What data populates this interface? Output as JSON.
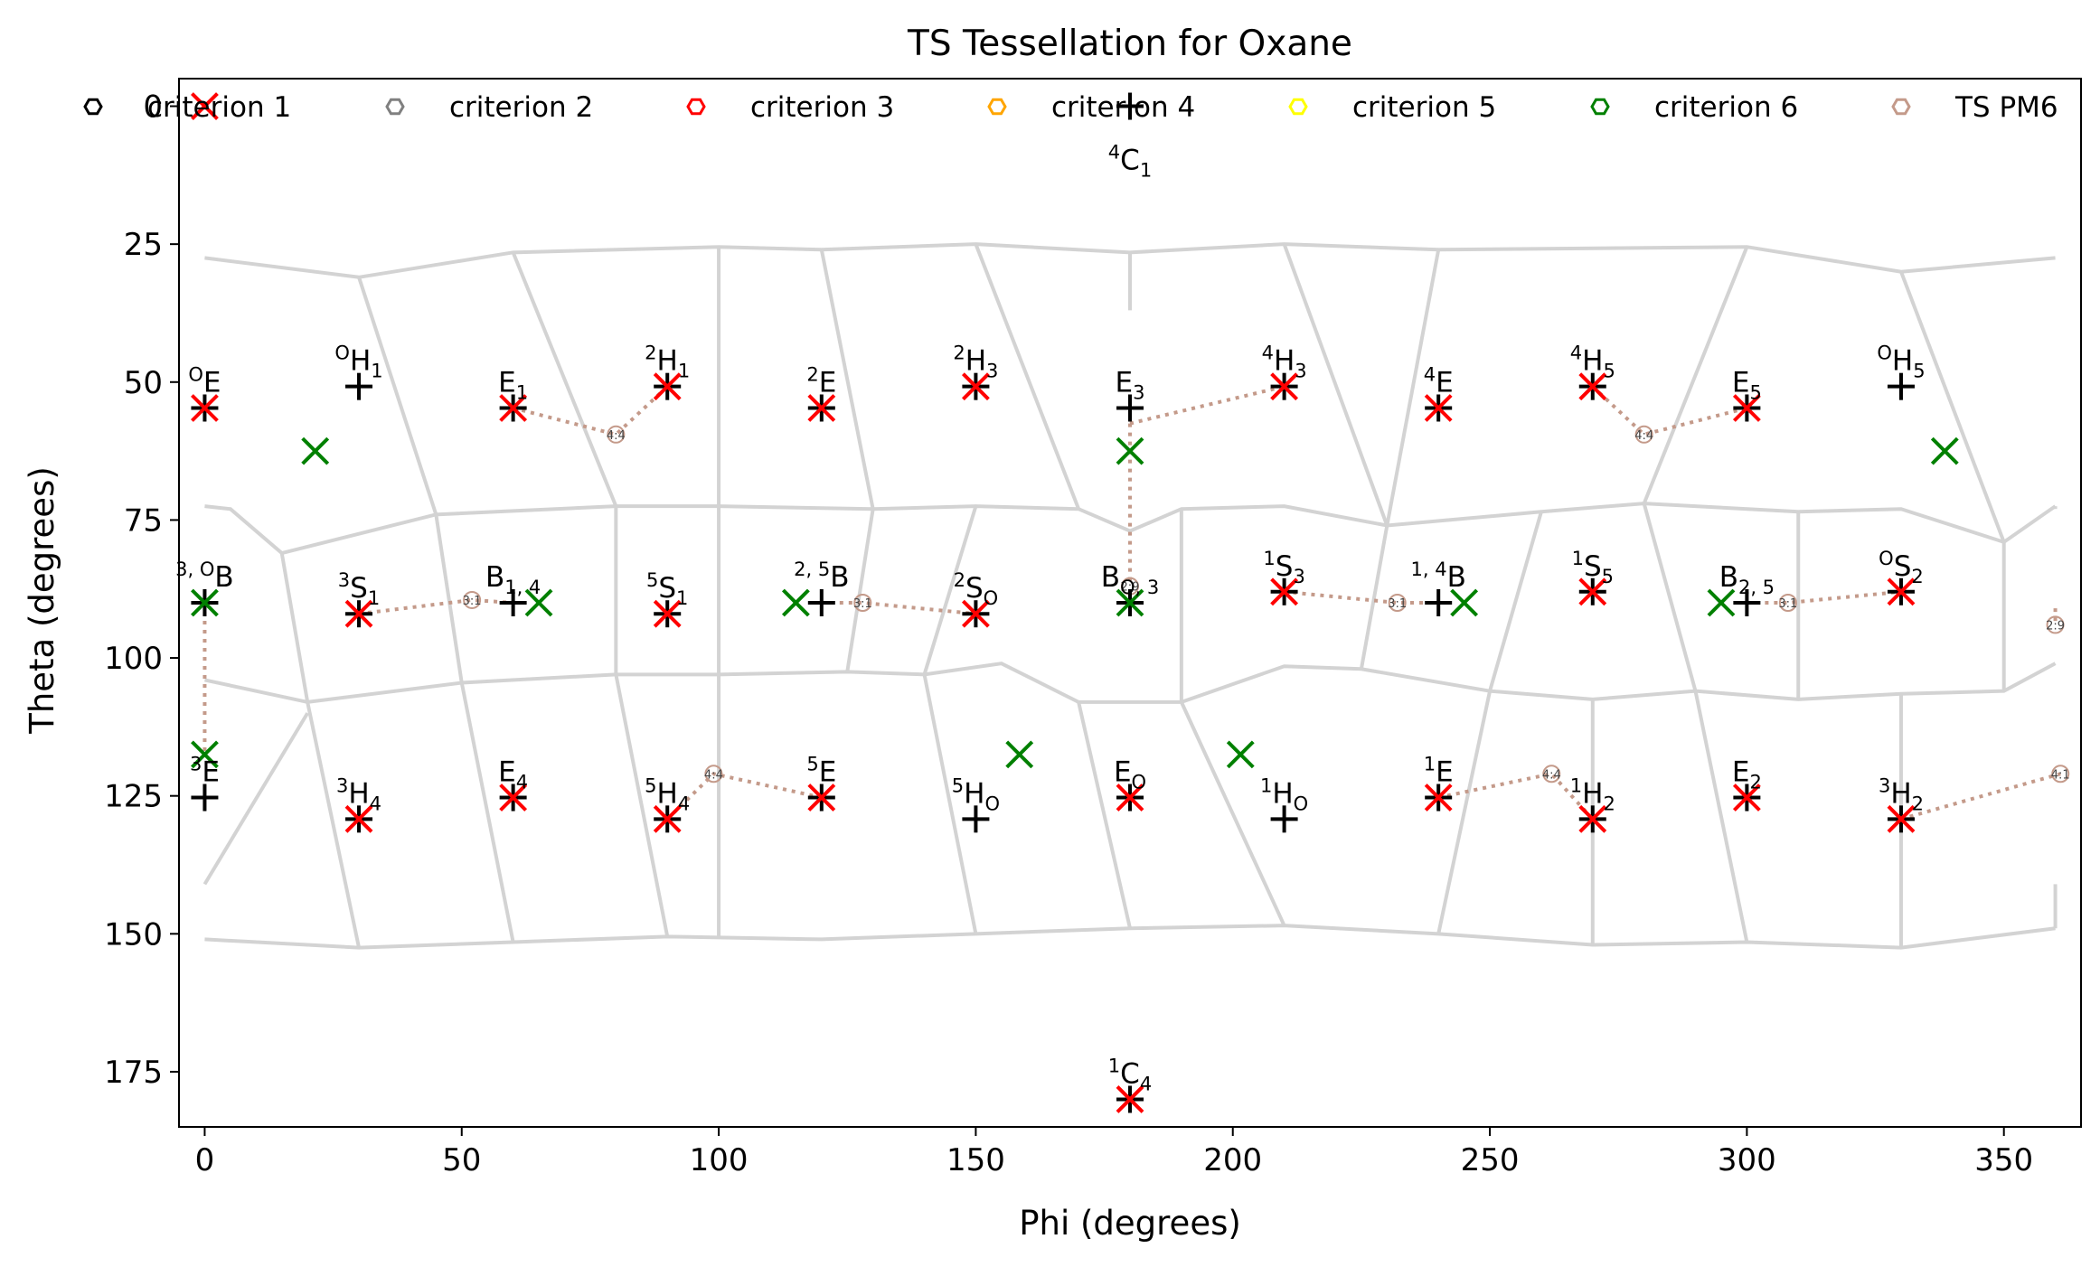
{
  "chart_data": {
    "type": "scatter",
    "title": "TS Tessellation for Oxane",
    "xlabel": "Phi (degrees)",
    "ylabel": "Theta (degrees)",
    "xlim": [
      -5,
      365
    ],
    "ylim": [
      185,
      -5
    ],
    "xticks": [
      0,
      50,
      100,
      150,
      200,
      250,
      300,
      350
    ],
    "yticks": [
      0,
      25,
      50,
      75,
      100,
      125,
      150,
      175
    ],
    "grid": false,
    "legend_position": "top",
    "legend": [
      {
        "label": "criterion 1",
        "color": "#000000"
      },
      {
        "label": "criterion 2",
        "color": "#808080"
      },
      {
        "label": "criterion 3",
        "color": "#ff0000"
      },
      {
        "label": "criterion 4",
        "color": "#ffa500"
      },
      {
        "label": "criterion 5",
        "color": "#ffff00"
      },
      {
        "label": "criterion 6",
        "color": "#008000"
      },
      {
        "label": "TS PM6",
        "color": "#c49a8a"
      }
    ],
    "colors": {
      "reference": "#000000",
      "criterion3": "#ff0000",
      "criterion6": "#008000",
      "ts_path": "#c49a8a",
      "tessellation": "#d3d3d3"
    },
    "reference_points": [
      {
        "main": "",
        "sup": "4",
        "sub": "1",
        "base": "C",
        "phi": 180,
        "theta": 0,
        "label_side": "below"
      },
      {
        "main": "",
        "sup": "O",
        "sub": "",
        "base": "E",
        "phi": 0,
        "theta": 54.7
      },
      {
        "main": "",
        "sup": "",
        "sub": "1",
        "base": "E",
        "phi": 60,
        "theta": 54.7
      },
      {
        "main": "",
        "sup": "2",
        "sub": "",
        "base": "E",
        "phi": 120,
        "theta": 54.7
      },
      {
        "main": "",
        "sup": "",
        "sub": "3",
        "base": "E",
        "phi": 180,
        "theta": 54.7
      },
      {
        "main": "",
        "sup": "4",
        "sub": "",
        "base": "E",
        "phi": 240,
        "theta": 54.7
      },
      {
        "main": "",
        "sup": "",
        "sub": "5",
        "base": "E",
        "phi": 300,
        "theta": 54.7
      },
      {
        "main": "",
        "sup": "O",
        "sub": "1",
        "base": "H",
        "phi": 30,
        "theta": 50.8
      },
      {
        "main": "",
        "sup": "2",
        "sub": "1",
        "base": "H",
        "phi": 90,
        "theta": 50.8
      },
      {
        "main": "",
        "sup": "2",
        "sub": "3",
        "base": "H",
        "phi": 150,
        "theta": 50.8
      },
      {
        "main": "",
        "sup": "4",
        "sub": "3",
        "base": "H",
        "phi": 210,
        "theta": 50.8
      },
      {
        "main": "",
        "sup": "4",
        "sub": "5",
        "base": "H",
        "phi": 270,
        "theta": 50.8
      },
      {
        "main": "",
        "sup": "O",
        "sub": "5",
        "base": "H",
        "phi": 330,
        "theta": 50.8
      },
      {
        "main": "",
        "sup": "3, O",
        "sub": "",
        "base": "B",
        "phi": 0,
        "theta": 90
      },
      {
        "main": "",
        "sup": "",
        "sub": "1, 4",
        "base": "B",
        "phi": 60,
        "theta": 90
      },
      {
        "main": "",
        "sup": "2, 5",
        "sub": "",
        "base": "B",
        "phi": 120,
        "theta": 90
      },
      {
        "main": "",
        "sup": "",
        "sub": "O, 3",
        "base": "B",
        "phi": 180,
        "theta": 90
      },
      {
        "main": "",
        "sup": "1, 4",
        "sub": "",
        "base": "B",
        "phi": 240,
        "theta": 90
      },
      {
        "main": "",
        "sup": "",
        "sub": "2, 5",
        "base": "B",
        "phi": 300,
        "theta": 90
      },
      {
        "main": "",
        "sup": "3",
        "sub": "1",
        "base": "S",
        "phi": 30,
        "theta": 92
      },
      {
        "main": "",
        "sup": "5",
        "sub": "1",
        "base": "S",
        "phi": 90,
        "theta": 92
      },
      {
        "main": "",
        "sup": "2",
        "sub": "O",
        "base": "S",
        "phi": 150,
        "theta": 92
      },
      {
        "main": "",
        "sup": "1",
        "sub": "3",
        "base": "S",
        "phi": 210,
        "theta": 88
      },
      {
        "main": "",
        "sup": "1",
        "sub": "5",
        "base": "S",
        "phi": 270,
        "theta": 88
      },
      {
        "main": "",
        "sup": "O",
        "sub": "2",
        "base": "S",
        "phi": 330,
        "theta": 88
      },
      {
        "main": "",
        "sup": "3",
        "sub": "",
        "base": "E",
        "phi": 0,
        "theta": 125.3
      },
      {
        "main": "",
        "sup": "",
        "sub": "4",
        "base": "E",
        "phi": 60,
        "theta": 125.3
      },
      {
        "main": "",
        "sup": "5",
        "sub": "",
        "base": "E",
        "phi": 120,
        "theta": 125.3
      },
      {
        "main": "",
        "sup": "",
        "sub": "O",
        "base": "E",
        "phi": 180,
        "theta": 125.3
      },
      {
        "main": "",
        "sup": "1",
        "sub": "",
        "base": "E",
        "phi": 240,
        "theta": 125.3
      },
      {
        "main": "",
        "sup": "",
        "sub": "2",
        "base": "E",
        "phi": 300,
        "theta": 125.3
      },
      {
        "main": "",
        "sup": "3",
        "sub": "4",
        "base": "H",
        "phi": 30,
        "theta": 129.2
      },
      {
        "main": "",
        "sup": "5",
        "sub": "4",
        "base": "H",
        "phi": 90,
        "theta": 129.2
      },
      {
        "main": "",
        "sup": "5",
        "sub": "O",
        "base": "H",
        "phi": 150,
        "theta": 129.2
      },
      {
        "main": "",
        "sup": "1",
        "sub": "O",
        "base": "H",
        "phi": 210,
        "theta": 129.2
      },
      {
        "main": "",
        "sup": "1",
        "sub": "2",
        "base": "H",
        "phi": 270,
        "theta": 129.2
      },
      {
        "main": "",
        "sup": "3",
        "sub": "2",
        "base": "H",
        "phi": 330,
        "theta": 129.2
      },
      {
        "main": "",
        "sup": "1",
        "sub": "4",
        "base": "C",
        "phi": 180,
        "theta": 180
      }
    ],
    "criterion3_points": [
      [
        0,
        0
      ],
      [
        0,
        54.7
      ],
      [
        60,
        54.7
      ],
      [
        120,
        54.7
      ],
      [
        240,
        54.7
      ],
      [
        300,
        54.7
      ],
      [
        90,
        50.8
      ],
      [
        150,
        50.8
      ],
      [
        210,
        50.8
      ],
      [
        270,
        50.8
      ],
      [
        30,
        92
      ],
      [
        90,
        92
      ],
      [
        150,
        92
      ],
      [
        210,
        88
      ],
      [
        270,
        88
      ],
      [
        330,
        88
      ],
      [
        60,
        125.3
      ],
      [
        120,
        125.3
      ],
      [
        180,
        125.3
      ],
      [
        240,
        125.3
      ],
      [
        300,
        125.3
      ],
      [
        30,
        129.2
      ],
      [
        90,
        129.2
      ],
      [
        270,
        129.2
      ],
      [
        330,
        129.2
      ],
      [
        180,
        180
      ]
    ],
    "criterion6_points": [
      [
        21.5,
        62.5
      ],
      [
        338.5,
        62.5
      ],
      [
        180,
        62.5
      ],
      [
        0,
        90
      ],
      [
        65,
        90
      ],
      [
        115,
        90
      ],
      [
        180,
        90
      ],
      [
        245,
        90
      ],
      [
        295,
        90
      ],
      [
        0,
        117.5
      ],
      [
        158.5,
        117.5
      ],
      [
        201.5,
        117.5
      ]
    ],
    "ts_paths": [
      {
        "label": "4:4",
        "points": [
          [
            60,
            54.7
          ],
          [
            80,
            59.5
          ],
          [
            90,
            50.8
          ]
        ]
      },
      {
        "label": "",
        "points": [
          [
            180,
            57.5
          ],
          [
            210,
            50.8
          ]
        ]
      },
      {
        "label": "4:4",
        "points": [
          [
            270,
            50.8
          ],
          [
            280,
            59.5
          ],
          [
            300,
            54.7
          ]
        ]
      },
      {
        "label": "2:9",
        "points": [
          [
            180,
            57.5
          ],
          [
            180,
            87
          ]
        ]
      },
      {
        "label": "",
        "points": [
          [
            0,
            90
          ],
          [
            0,
            117
          ]
        ]
      },
      {
        "label": "3:1",
        "points": [
          [
            30,
            92
          ],
          [
            52,
            89.5
          ],
          [
            60,
            90
          ]
        ]
      },
      {
        "label": "3:1",
        "points": [
          [
            120,
            90
          ],
          [
            128,
            90
          ],
          [
            150,
            92
          ]
        ]
      },
      {
        "label": "3:1",
        "points": [
          [
            210,
            88
          ],
          [
            232,
            90
          ],
          [
            240,
            90
          ]
        ]
      },
      {
        "label": "3:1",
        "points": [
          [
            300,
            90
          ],
          [
            308,
            90
          ],
          [
            330,
            88
          ]
        ]
      },
      {
        "label": "2:9",
        "points": [
          [
            360,
            91
          ],
          [
            360,
            94
          ]
        ]
      },
      {
        "label": "4:4",
        "points": [
          [
            90,
            129.2
          ],
          [
            99,
            121
          ],
          [
            120,
            125.3
          ]
        ]
      },
      {
        "label": "4:4",
        "points": [
          [
            240,
            125.3
          ],
          [
            262,
            121
          ],
          [
            270,
            129.2
          ]
        ]
      },
      {
        "label": "4:1",
        "points": [
          [
            330,
            129.2
          ],
          [
            361,
            121
          ]
        ]
      }
    ]
  }
}
